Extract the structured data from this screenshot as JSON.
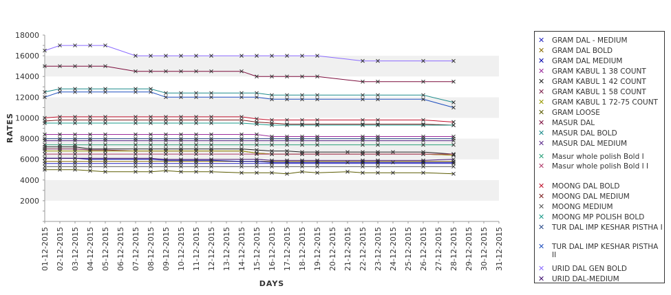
{
  "chart_data": {
    "type": "line",
    "title": "",
    "xlabel": "DAYS",
    "ylabel": "RATES",
    "ylim": [
      0,
      18000
    ],
    "yticks": [
      2000,
      4000,
      6000,
      8000,
      10000,
      12000,
      14000,
      16000,
      18000
    ],
    "grid": "alternating horizontal bands",
    "legend_position": "right",
    "categories": [
      "01-12-2015",
      "02-12-2015",
      "03-12-2015",
      "04-12-2015",
      "05-12-2015",
      "06-12-2015",
      "07-12-2015",
      "08-12-2015",
      "09-12-2015",
      "10-12-2015",
      "11-12-2015",
      "12-12-2015",
      "13-12-2015",
      "14-12-2015",
      "15-12-2015",
      "16-12-2015",
      "17-12-2015",
      "18-12-2015",
      "19-12-2015",
      "20-12-2015",
      "21-12-2015",
      "22-12-2015",
      "23-12-2015",
      "24-12-2015",
      "25-12-2015",
      "26-12-2015",
      "27-12-2015",
      "28-12-2015",
      "29-12-2015",
      "30-12-2015",
      "31-12-2015"
    ],
    "series": [
      {
        "name": "GRAM DAL - MEDIUM",
        "color": "#1f1fbf",
        "values": [
          5600,
          5600,
          5600,
          5600,
          5600,
          null,
          5600,
          5600,
          5600,
          5600,
          5600,
          5600,
          null,
          5600,
          5600,
          5600,
          5600,
          5600,
          5600,
          null,
          null,
          5600,
          5600,
          null,
          null,
          5600,
          null,
          5600,
          null,
          null,
          null
        ]
      },
      {
        "name": "GRAM DAL BOLD",
        "color": "#8a6d00",
        "values": [
          5800,
          5800,
          5800,
          5800,
          5800,
          null,
          5800,
          5800,
          5800,
          5800,
          5800,
          5800,
          null,
          5800,
          5800,
          5800,
          5800,
          5800,
          5800,
          null,
          null,
          5800,
          5800,
          null,
          null,
          5800,
          null,
          5800,
          null,
          null,
          null
        ]
      },
      {
        "name": "GRAM DAL MEDIUM",
        "color": "#0000aa",
        "values": [
          6100,
          6100,
          6100,
          6000,
          6000,
          null,
          6000,
          6000,
          5900,
          5900,
          5900,
          5900,
          null,
          5800,
          5800,
          5700,
          5700,
          5700,
          5700,
          null,
          5700,
          5700,
          5700,
          5700,
          null,
          5700,
          null,
          5700,
          null,
          null,
          null
        ]
      },
      {
        "name": "GRAM KABUL 1 38 COUNT",
        "color": "#9a2a9a",
        "values": [
          8400,
          8400,
          8400,
          8400,
          8400,
          null,
          8400,
          8400,
          8400,
          8400,
          8400,
          8400,
          null,
          8400,
          8400,
          8200,
          8200,
          8200,
          8200,
          null,
          null,
          8200,
          8200,
          null,
          null,
          8200,
          null,
          8200,
          null,
          null,
          null
        ]
      },
      {
        "name": "GRAM KABUL 1 42 COUNT",
        "color": "#222222",
        "values": [
          7200,
          7200,
          7200,
          7000,
          7000,
          null,
          7000,
          7000,
          7000,
          7000,
          7000,
          7000,
          null,
          7000,
          6900,
          6800,
          6800,
          6700,
          6700,
          null,
          6700,
          6700,
          6700,
          6700,
          null,
          6700,
          null,
          6500,
          null,
          null,
          null
        ]
      },
      {
        "name": "GRAM KABUL 1 58 COUNT",
        "color": "#7a1f4a",
        "values": [
          7000,
          7000,
          7000,
          6900,
          6900,
          null,
          6800,
          6800,
          6800,
          6800,
          6800,
          6800,
          null,
          6800,
          6600,
          6500,
          6500,
          6500,
          6500,
          null,
          null,
          6500,
          6500,
          null,
          null,
          6500,
          null,
          6400,
          null,
          null,
          null
        ]
      },
      {
        "name": "GRAM KABUL 1 72-75 COUNT",
        "color": "#999900",
        "values": [
          6800,
          6800,
          6800,
          6800,
          6800,
          null,
          6800,
          6800,
          6800,
          6800,
          6800,
          6800,
          null,
          6800,
          6600,
          6500,
          6500,
          6500,
          6500,
          null,
          null,
          6500,
          6500,
          null,
          null,
          6500,
          null,
          6400,
          null,
          null,
          null
        ]
      },
      {
        "name": "GRAM LOOSE",
        "color": "#5a5a00",
        "values": [
          5000,
          5000,
          5000,
          4900,
          4800,
          null,
          4800,
          4800,
          4900,
          4800,
          4800,
          4800,
          null,
          4700,
          4700,
          4700,
          4600,
          4800,
          4700,
          null,
          4800,
          4700,
          4700,
          4700,
          null,
          4700,
          null,
          4600,
          null,
          null,
          null
        ]
      },
      {
        "name": "MASUR DAL",
        "color": "#7a0a3a",
        "values": [
          15000,
          15000,
          15000,
          15000,
          15000,
          null,
          14500,
          14500,
          14500,
          14500,
          14500,
          14500,
          null,
          14500,
          14000,
          14000,
          14000,
          14000,
          14000,
          null,
          null,
          13500,
          13500,
          null,
          null,
          13500,
          null,
          13500,
          null,
          null,
          null
        ]
      },
      {
        "name": "MASUR DAL BOLD",
        "color": "#1a8a8a",
        "values": [
          12500,
          12800,
          12800,
          12800,
          12800,
          null,
          12800,
          12800,
          12400,
          12400,
          12400,
          12400,
          null,
          12400,
          12400,
          12200,
          12200,
          12200,
          12200,
          null,
          null,
          12200,
          12200,
          null,
          null,
          12200,
          null,
          11500,
          null,
          null,
          null
        ]
      },
      {
        "name": "MASUR DAL MEDIUM",
        "color": "#5a2a8a",
        "values": [
          7800,
          7800,
          7800,
          7800,
          7800,
          null,
          7800,
          7800,
          7800,
          7800,
          7800,
          7800,
          null,
          7800,
          7800,
          7800,
          7800,
          7800,
          7800,
          null,
          null,
          7800,
          7800,
          null,
          null,
          7800,
          null,
          7800,
          null,
          null,
          null
        ]
      },
      {
        "name": "Masur whole polish Bold I",
        "color": "#2aa07a",
        "values": [
          7400,
          7400,
          7400,
          7400,
          7400,
          null,
          7400,
          7400,
          7400,
          7400,
          7400,
          7400,
          null,
          7400,
          7400,
          7400,
          7400,
          7400,
          7400,
          null,
          null,
          7400,
          7400,
          null,
          null,
          7400,
          null,
          7400,
          null,
          null,
          null
        ]
      },
      {
        "name": "Masur whole polish Bold I I",
        "color": "#b03a6a",
        "values": [
          6500,
          6500,
          6500,
          6500,
          6500,
          null,
          6500,
          6500,
          6500,
          6500,
          6500,
          6500,
          null,
          6500,
          6500,
          6500,
          6500,
          6500,
          6500,
          null,
          null,
          6500,
          6500,
          null,
          null,
          6500,
          null,
          6500,
          null,
          null,
          null
        ]
      },
      {
        "name": "MOONG DAL BOLD",
        "color": "#c0102a",
        "values": [
          10000,
          10100,
          10100,
          10100,
          10100,
          null,
          10100,
          10100,
          10100,
          10100,
          10100,
          10100,
          null,
          10100,
          9900,
          9800,
          9800,
          9800,
          9800,
          null,
          null,
          9800,
          9800,
          null,
          null,
          9800,
          null,
          9600,
          null,
          null,
          null
        ]
      },
      {
        "name": "MOONG DAL MEDIUM",
        "color": "#7a1a1a",
        "values": [
          9700,
          9800,
          9800,
          9800,
          9800,
          null,
          9800,
          9800,
          9800,
          9800,
          9800,
          9800,
          null,
          9800,
          9600,
          9500,
          9400,
          9400,
          9400,
          null,
          null,
          9400,
          9400,
          null,
          null,
          9400,
          null,
          9300,
          null,
          null,
          null
        ]
      },
      {
        "name": "MOONG MEDIUM",
        "color": "#555555",
        "values": [
          5300,
          5300,
          5300,
          5300,
          5300,
          null,
          5300,
          5300,
          5300,
          5300,
          5300,
          5300,
          null,
          5300,
          5300,
          5300,
          5300,
          5300,
          5300,
          null,
          null,
          5300,
          5300,
          null,
          null,
          5300,
          null,
          5300,
          null,
          null,
          null
        ]
      },
      {
        "name": "MOONG MP POLISH BOLD",
        "color": "#1a9a8a",
        "values": [
          9500,
          9500,
          9500,
          9500,
          9500,
          null,
          9500,
          9500,
          9500,
          9500,
          9500,
          9500,
          null,
          9500,
          9400,
          9300,
          9300,
          9300,
          9300,
          null,
          null,
          9300,
          9300,
          null,
          null,
          9300,
          null,
          9300,
          null,
          null,
          null
        ]
      },
      {
        "name": "TUR DAL IMP KESHAR PISTHA I",
        "color": "#2a4a8a",
        "values": [
          8000,
          8000,
          8000,
          8000,
          8000,
          null,
          8000,
          8000,
          8000,
          8000,
          8000,
          8000,
          null,
          8000,
          8000,
          8000,
          8000,
          8000,
          8000,
          null,
          null,
          8000,
          8000,
          null,
          null,
          8000,
          null,
          8000,
          null,
          null,
          null
        ]
      },
      {
        "name": "TUR DAL IMP KESHAR PISTHA II",
        "color": "#1f4fbf",
        "values": [
          12000,
          12500,
          12500,
          12500,
          12500,
          null,
          12500,
          12500,
          12000,
          12000,
          12000,
          12000,
          null,
          12000,
          12000,
          11800,
          11800,
          11800,
          11800,
          null,
          null,
          11800,
          11800,
          null,
          null,
          11800,
          null,
          11000,
          null,
          null,
          null
        ]
      },
      {
        "name": "URID DAL GEN BOLD",
        "color": "#8a6aff",
        "values": [
          16500,
          17000,
          17000,
          17000,
          17000,
          null,
          16000,
          16000,
          16000,
          16000,
          16000,
          16000,
          null,
          16000,
          16000,
          16000,
          16000,
          16000,
          16000,
          null,
          null,
          15500,
          15500,
          null,
          null,
          15500,
          null,
          15500,
          null,
          null,
          null
        ]
      },
      {
        "name": "URID DAL-MEDIUM",
        "color": "#3a0a6a",
        "values": [
          6100,
          6100,
          6100,
          6100,
          6100,
          null,
          6100,
          6100,
          6000,
          6000,
          6000,
          6000,
          null,
          6000,
          6000,
          5900,
          5900,
          5900,
          5900,
          null,
          null,
          5900,
          5900,
          null,
          null,
          5900,
          null,
          6000,
          null,
          null,
          null
        ]
      }
    ]
  }
}
